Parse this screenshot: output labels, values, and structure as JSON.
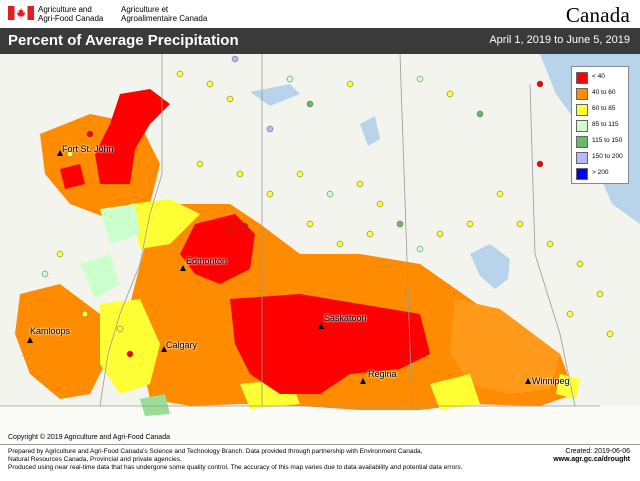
{
  "header": {
    "agency_en_line1": "Agriculture and",
    "agency_en_line2": "Agri-Food Canada",
    "agency_fr_line1": "Agriculture et",
    "agency_fr_line2": "Agroalimentaire Canada",
    "wordmark": "Canada"
  },
  "title": {
    "text": "Percent of Average Precipitation",
    "date_range": "April 1, 2019 to June 5, 2019"
  },
  "legend": {
    "items": [
      {
        "label": "< 40",
        "color": "#ff0000"
      },
      {
        "label": "40 to 60",
        "color": "#ff8c00"
      },
      {
        "label": "60 to 85",
        "color": "#ffff33"
      },
      {
        "label": "85 to 115",
        "color": "#ccffcc"
      },
      {
        "label": "115 to 150",
        "color": "#66bb66"
      },
      {
        "label": "150 to 200",
        "color": "#b8b8ff"
      },
      {
        "label": "> 200",
        "color": "#0000ff"
      }
    ]
  },
  "cities": [
    {
      "name": "Fort St. John"
    },
    {
      "name": "Edmonton"
    },
    {
      "name": "Kamloops"
    },
    {
      "name": "Calgary"
    },
    {
      "name": "Saskatoon"
    },
    {
      "name": "Regina"
    },
    {
      "name": "Winnipeg"
    }
  ],
  "copyright": "Copyright © 2019 Agriculture and Agri-Food Canada",
  "footer": {
    "line1": "Prepared by Agriculture and Agri-Food Canada's Science and Technology Branch. Data provided through partnership with Environment Canada,",
    "line2": "Natural Resources Canada, Provincial and private agencies.",
    "line3": "Produced using near real-time data that has undergone some quality control. The accuracy of this map varies due to data availability and potential data errors.",
    "created": "Created: 2019-06-06",
    "url": "www.agr.gc.ca/drought"
  }
}
